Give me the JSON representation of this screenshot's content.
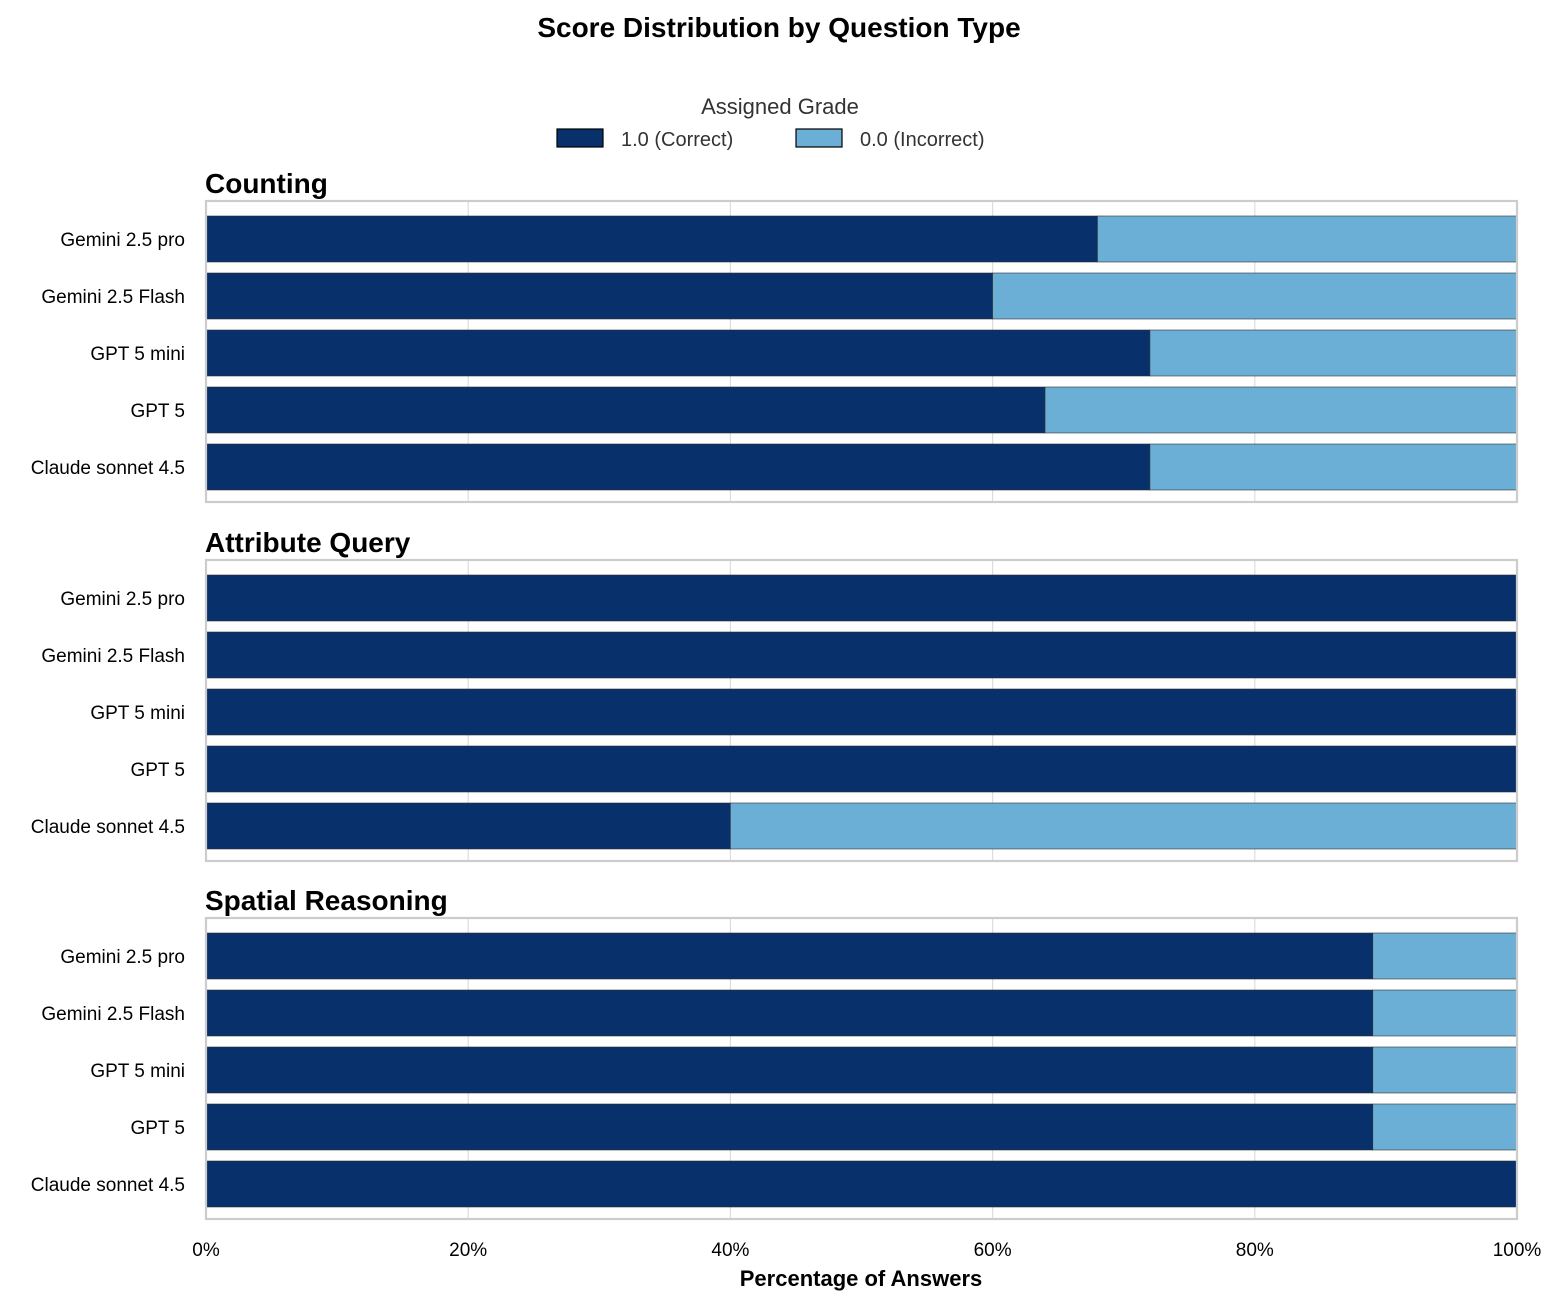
{
  "title": "Score Distribution by Question Type",
  "legend": {
    "title": "Assigned Grade",
    "position": "top-center",
    "entries": [
      {
        "label": "1.0 (Correct)",
        "color": "#08306b"
      },
      {
        "label": "0.0 (Incorrect)",
        "color": "#6baed6"
      }
    ]
  },
  "xlabel": "Percentage of Answers",
  "colors": {
    "correct": "#08306b",
    "incorrect": "#6baed6",
    "grid": "#dddddd",
    "frame": "#cccccc"
  },
  "chart_data": {
    "type": "bar",
    "orientation": "horizontal",
    "stacked": true,
    "xlim": [
      0,
      100
    ],
    "x_unit": "%",
    "xticks": [
      0,
      20,
      40,
      60,
      80,
      100
    ],
    "xtick_labels": [
      "0%",
      "20%",
      "40%",
      "60%",
      "80%",
      "100%"
    ],
    "grid": true,
    "categories": [
      "Gemini 2.5 pro",
      "Gemini 2.5 Flash",
      "GPT 5 mini",
      "GPT 5",
      "Claude sonnet 4.5"
    ],
    "panels": [
      {
        "title": "Counting",
        "series": [
          {
            "name": "1.0 (Correct)",
            "values": [
              68,
              60,
              72,
              64,
              72
            ]
          },
          {
            "name": "0.0 (Incorrect)",
            "values": [
              32,
              40,
              28,
              36,
              28
            ]
          }
        ]
      },
      {
        "title": "Attribute Query",
        "series": [
          {
            "name": "1.0 (Correct)",
            "values": [
              100,
              100,
              100,
              100,
              40
            ]
          },
          {
            "name": "0.0 (Incorrect)",
            "values": [
              0,
              0,
              0,
              0,
              60
            ]
          }
        ]
      },
      {
        "title": "Spatial Reasoning",
        "series": [
          {
            "name": "1.0 (Correct)",
            "values": [
              89,
              89,
              89,
              89,
              100
            ]
          },
          {
            "name": "0.0 (Incorrect)",
            "values": [
              11,
              11,
              11,
              11,
              0
            ]
          }
        ]
      }
    ]
  }
}
